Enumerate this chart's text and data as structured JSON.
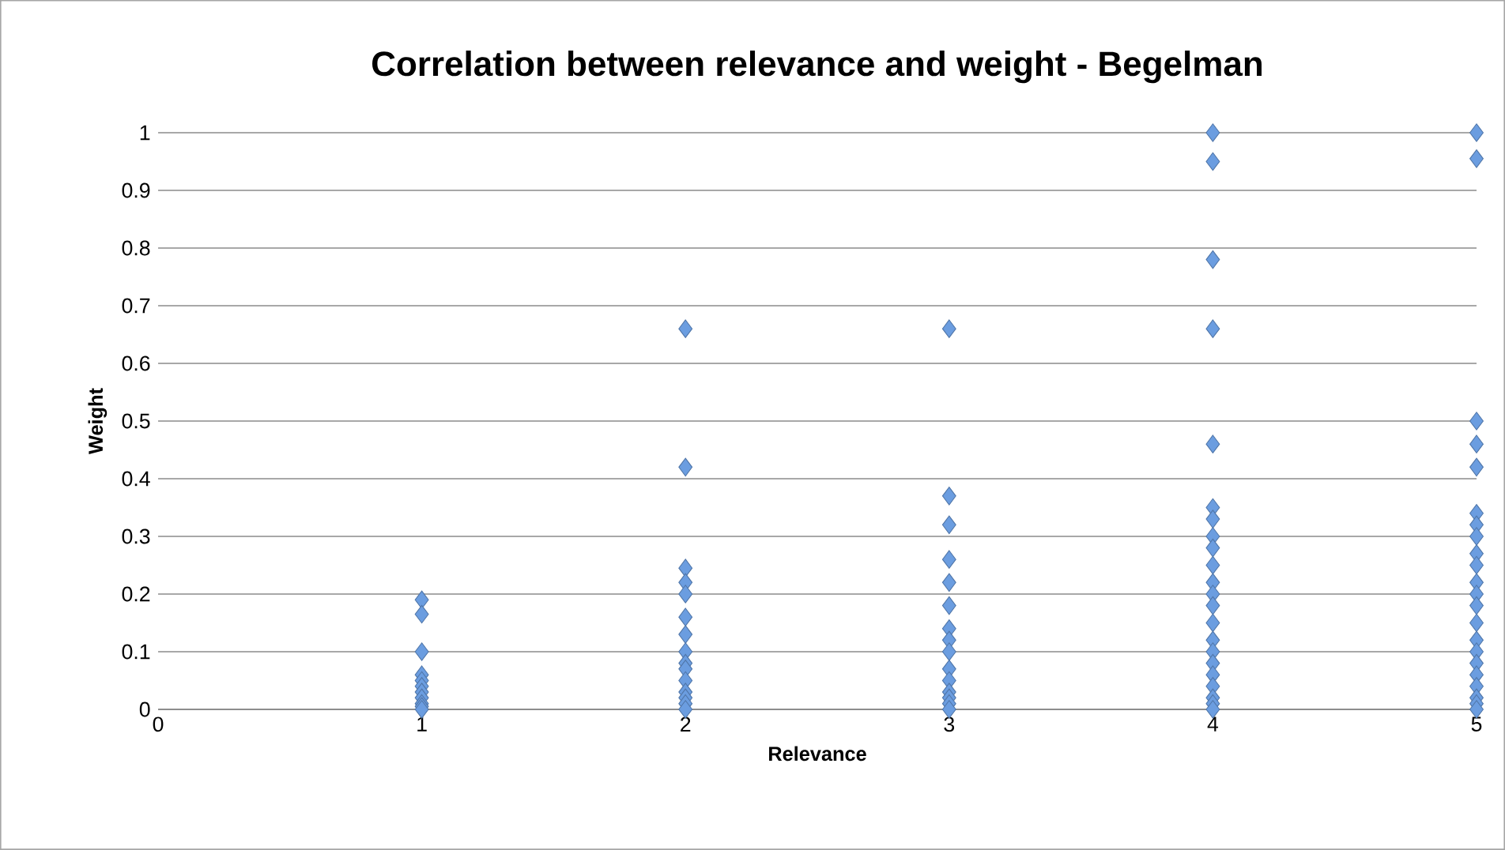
{
  "chart_data": {
    "type": "scatter",
    "title": "Correlation between relevance and weight - Begelman",
    "xlabel": "Relevance",
    "ylabel": "Weight",
    "series": [
      {
        "color": "#6b9de0",
        "x": [
          1,
          1,
          1,
          1,
          1,
          1,
          1,
          1,
          1,
          1,
          1,
          2,
          2,
          2,
          2,
          2,
          2,
          2,
          2,
          2,
          2,
          2,
          2,
          2,
          2,
          2,
          3,
          3,
          3,
          3,
          3,
          3,
          3,
          3,
          3,
          3,
          3,
          3,
          3,
          3,
          3,
          4,
          4,
          4,
          4,
          4,
          4,
          4,
          4,
          4,
          4,
          4,
          4,
          4,
          4,
          4,
          4,
          4,
          4,
          4,
          4,
          4,
          4,
          5,
          5,
          5,
          5,
          5,
          5,
          5,
          5,
          5,
          5,
          5,
          5,
          5,
          5,
          5,
          5,
          5,
          5,
          5,
          5,
          5,
          5
        ],
        "values": [
          0.19,
          0.165,
          0.1,
          0.06,
          0.05,
          0.04,
          0.03,
          0.02,
          0.01,
          0.005,
          0,
          0.66,
          0.42,
          0.245,
          0.22,
          0.2,
          0.16,
          0.13,
          0.1,
          0.08,
          0.07,
          0.05,
          0.03,
          0.02,
          0.01,
          0,
          0.66,
          0.37,
          0.32,
          0.26,
          0.22,
          0.18,
          0.14,
          0.12,
          0.1,
          0.07,
          0.05,
          0.03,
          0.02,
          0.01,
          0,
          1,
          0.95,
          0.78,
          0.66,
          0.46,
          0.35,
          0.33,
          0.3,
          0.28,
          0.25,
          0.22,
          0.2,
          0.18,
          0.15,
          0.12,
          0.1,
          0.08,
          0.06,
          0.04,
          0.02,
          0.01,
          0,
          1,
          0.955,
          0.5,
          0.46,
          0.42,
          0.34,
          0.32,
          0.3,
          0.27,
          0.25,
          0.22,
          0.2,
          0.18,
          0.15,
          0.12,
          0.1,
          0.08,
          0.06,
          0.04,
          0.02,
          0.01,
          0
        ]
      }
    ],
    "xlim": [
      0,
      5
    ],
    "ylim": [
      0,
      1
    ],
    "xticks": [
      0,
      1,
      2,
      3,
      4,
      5
    ],
    "yticks": [
      0,
      0.1,
      0.2,
      0.3,
      0.4,
      0.5,
      0.6,
      0.7,
      0.8,
      0.9,
      1
    ],
    "grid": "y",
    "marker": "diamond"
  }
}
